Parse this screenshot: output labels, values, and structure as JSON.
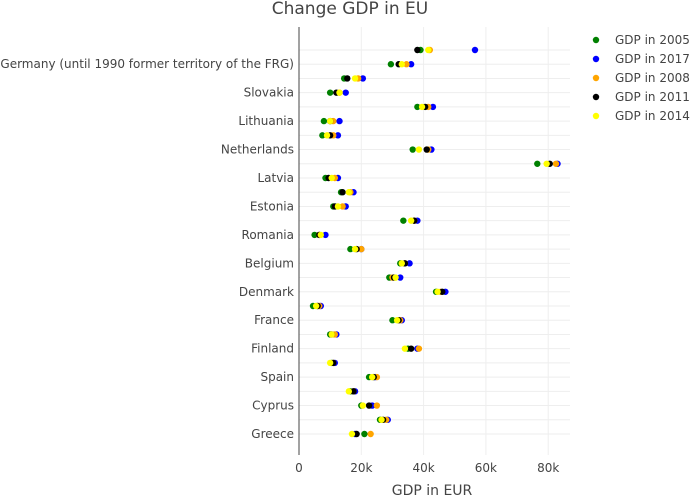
{
  "chart_data": {
    "type": "scatter",
    "title": "Change GDP in EU",
    "xlabel": "GDP in EUR",
    "ylabel": "",
    "xlim": [
      0,
      87000
    ],
    "xticks": [
      0,
      20000,
      40000,
      60000,
      80000
    ],
    "xtick_labels": [
      "0",
      "20k",
      "40k",
      "60k",
      "80k"
    ],
    "grid": true,
    "legend_position": "top-right",
    "categories": [
      "Greece",
      "",
      "Cyprus",
      "",
      "Spain",
      "",
      "Finland",
      "",
      "France",
      "",
      "Denmark",
      "",
      "Belgium",
      "",
      "Romania",
      "",
      "Estonia",
      "",
      "Latvia",
      "",
      "Netherlands",
      "",
      "Lithuania",
      "",
      "Slovakia",
      "",
      "Germany (until 1990 former territory of the FRG)",
      ""
    ],
    "series": [
      {
        "name": "GDP in 2005",
        "color": "#008000",
        "values": [
          21000,
          26000,
          20000,
          16500,
          22500,
          10500,
          35000,
          10000,
          30000,
          4500,
          44000,
          29000,
          32500,
          16500,
          5000,
          33500,
          11000,
          13500,
          8500,
          76500,
          36500,
          7500,
          8000,
          38000,
          10000,
          14500,
          29500,
          39000
        ]
      },
      {
        "name": "GDP in 2017",
        "color": "#0000ff",
        "values": [
          18000,
          28500,
          23500,
          18000,
          24500,
          11500,
          38000,
          12000,
          33000,
          7000,
          47000,
          32500,
          35500,
          20000,
          8500,
          38000,
          15000,
          17500,
          12500,
          83000,
          42500,
          12500,
          13000,
          43000,
          15000,
          20500,
          36000,
          56500
        ]
      },
      {
        "name": "GDP in 2008",
        "color": "#ffa500",
        "values": [
          23000,
          28000,
          25000,
          17500,
          25000,
          11000,
          38500,
          11500,
          32500,
          6500,
          45500,
          30000,
          34000,
          20000,
          6500,
          37000,
          14000,
          16500,
          11500,
          82500,
          41500,
          11000,
          11000,
          41500,
          13000,
          19000,
          34500,
          42000
        ]
      },
      {
        "name": "GDP in 2011",
        "color": "#000000",
        "values": [
          18500,
          27000,
          22500,
          17500,
          24000,
          11000,
          36000,
          10500,
          32000,
          6000,
          46000,
          30500,
          34000,
          18500,
          6500,
          37000,
          11500,
          14000,
          9500,
          80500,
          41000,
          10000,
          10000,
          40500,
          12000,
          15500,
          32000,
          38000
        ]
      },
      {
        "name": "GDP in 2014",
        "color": "#ffff00",
        "values": [
          17000,
          26500,
          20500,
          16000,
          23500,
          10000,
          34000,
          10500,
          31500,
          5500,
          44500,
          31000,
          33000,
          18000,
          7000,
          36000,
          12500,
          16000,
          10500,
          79500,
          38500,
          9000,
          10000,
          39500,
          13000,
          18000,
          33000,
          41500
        ]
      }
    ]
  }
}
